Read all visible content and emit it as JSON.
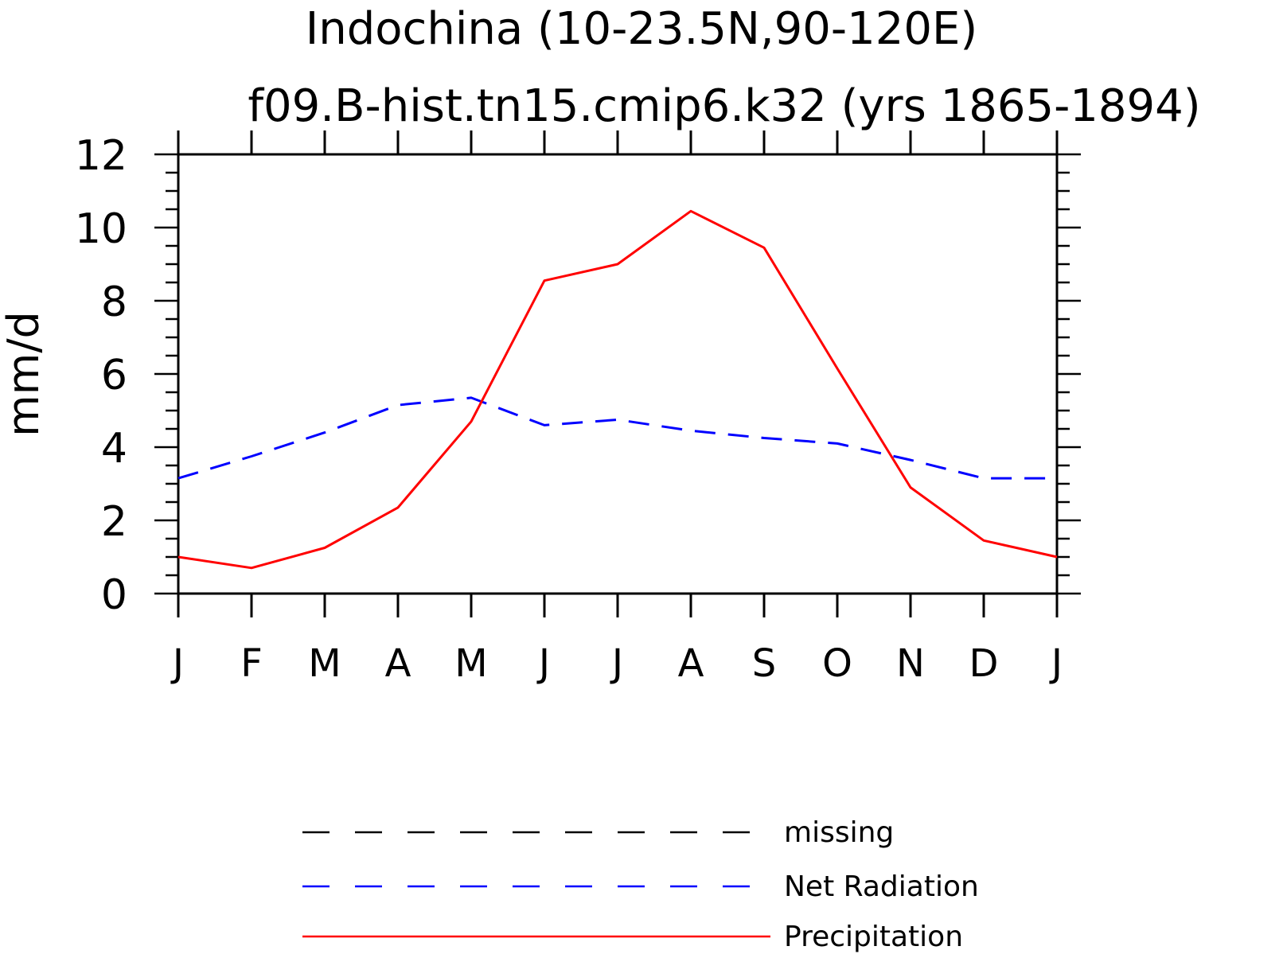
{
  "chart_data": {
    "type": "line",
    "title": "Indochina (10-23.5N,90-120E)",
    "subtitle": "f09.B-hist.tn15.cmip6.k32 (yrs 1865-1894)",
    "xlabel": "",
    "ylabel": "mm/d",
    "ylim": [
      0,
      12
    ],
    "yticks": [
      "0",
      "2",
      "4",
      "6",
      "8",
      "10",
      "12"
    ],
    "categories": [
      "J",
      "F",
      "M",
      "A",
      "M",
      "J",
      "J",
      "A",
      "S",
      "O",
      "N",
      "D",
      "J"
    ],
    "series": [
      {
        "name": "Net Radiation",
        "color": "#0000ff",
        "style": "dashed",
        "values": [
          3.15,
          3.75,
          4.4,
          5.15,
          5.35,
          4.6,
          4.75,
          4.45,
          4.25,
          4.1,
          3.65,
          3.15,
          3.15
        ]
      },
      {
        "name": "Precipitation",
        "color": "#ff0000",
        "style": "solid",
        "values": [
          1.0,
          0.7,
          1.25,
          2.35,
          4.7,
          8.55,
          9.0,
          10.45,
          9.45,
          6.15,
          2.9,
          1.45,
          1.0
        ]
      }
    ],
    "legend": {
      "placement": "bottom",
      "entries": [
        {
          "label": "missing",
          "color": "#000000",
          "style": "dashed"
        },
        {
          "label": "Net Radiation",
          "color": "#0000ff",
          "style": "dashed"
        },
        {
          "label": "Precipitation",
          "color": "#ff0000",
          "style": "solid"
        }
      ]
    },
    "grid": false
  }
}
